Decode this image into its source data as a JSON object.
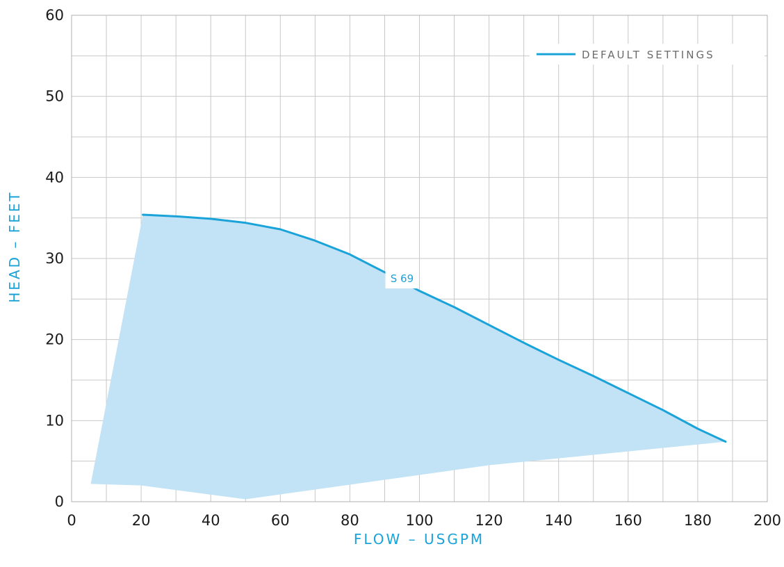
{
  "chart_data": {
    "type": "line",
    "xlabel": "FLOW – USGPM",
    "ylabel": "HEAD – FEET",
    "xlim": [
      0,
      200
    ],
    "ylim": [
      0,
      60
    ],
    "x_ticks": [
      0,
      20,
      40,
      60,
      80,
      100,
      120,
      140,
      160,
      180,
      200
    ],
    "y_ticks": [
      0,
      10,
      20,
      30,
      40,
      50,
      60
    ],
    "x_minor_step": 10,
    "y_minor_step": 5,
    "grid": true,
    "legend_position": "top-right",
    "series": [
      {
        "name": "DEFAULT SETTINGS",
        "color": "#1aa3d9",
        "label": "S 69",
        "label_at": [
          95,
          27.5
        ],
        "points": [
          [
            20.5,
            35.4
          ],
          [
            30,
            35.2
          ],
          [
            40,
            34.9
          ],
          [
            50,
            34.4
          ],
          [
            60,
            33.6
          ],
          [
            70,
            32.2
          ],
          [
            80,
            30.5
          ],
          [
            90,
            28.3
          ],
          [
            100,
            26
          ],
          [
            110,
            24
          ],
          [
            120,
            21.8
          ],
          [
            130,
            19.6
          ],
          [
            140,
            17.5
          ],
          [
            150,
            15.5
          ],
          [
            160,
            13.4
          ],
          [
            170,
            11.3
          ],
          [
            180,
            9
          ],
          [
            188,
            7.4
          ]
        ]
      }
    ],
    "operating_range": {
      "color": "#c2e2f5",
      "points": [
        [
          20.5,
          35.4
        ],
        [
          30,
          35.2
        ],
        [
          40,
          34.9
        ],
        [
          50,
          34.4
        ],
        [
          60,
          33.6
        ],
        [
          70,
          32.2
        ],
        [
          80,
          30.5
        ],
        [
          90,
          28.3
        ],
        [
          100,
          26
        ],
        [
          110,
          24
        ],
        [
          120,
          21.8
        ],
        [
          130,
          19.6
        ],
        [
          140,
          17.5
        ],
        [
          150,
          15.5
        ],
        [
          160,
          13.4
        ],
        [
          170,
          11.3
        ],
        [
          180,
          9
        ],
        [
          188,
          7.4
        ],
        [
          120,
          4.5
        ],
        [
          50,
          0.3
        ],
        [
          20,
          2
        ],
        [
          5.5,
          2.2
        ]
      ]
    }
  }
}
